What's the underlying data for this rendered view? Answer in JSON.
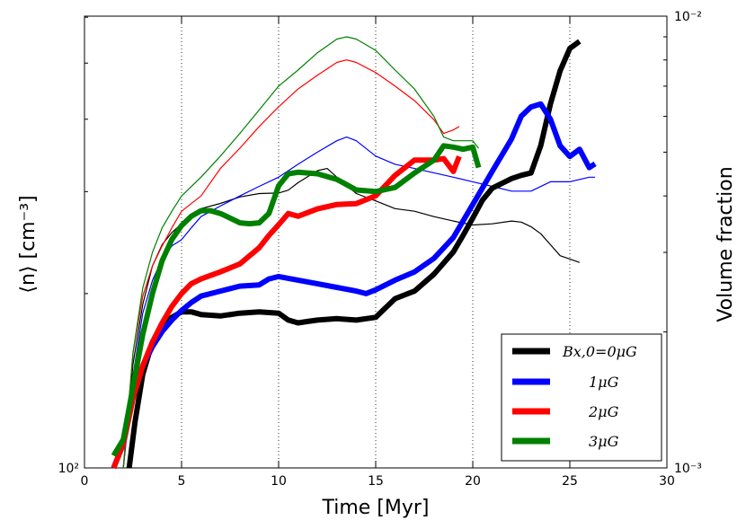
{
  "chart_data": {
    "type": "line",
    "title": "",
    "xlabel": "Time [Myr]",
    "ylabel_left": "⟨n⟩ [cm⁻³]",
    "ylabel_right": "Volume fraction",
    "xlim": [
      0,
      30
    ],
    "x_ticks": [
      "0",
      "5",
      "10",
      "15",
      "20",
      "25",
      "30"
    ],
    "y_left_scale": "log",
    "y_left_ticks": [
      "10²"
    ],
    "y_right_scale": "log",
    "y_right_lim": [
      0.001,
      0.01
    ],
    "y_right_ticks": [
      "10⁻²",
      "10⁻³"
    ],
    "grid": "vertical dotted lines at x = 5, 10, 15, 20, 25",
    "legend_placement": "lower right",
    "series": [
      {
        "name": "B_x,0 = 0 μG",
        "legend_label": "Bx,0=0μG",
        "color": "#000000",
        "axis": "left",
        "x": [
          2.3,
          2.6,
          3.0,
          3.5,
          4.0,
          4.5,
          5.0,
          5.5,
          6.0,
          7.0,
          8.0,
          9.0,
          10.0,
          10.5,
          11.0,
          11.5,
          12.0,
          13.0,
          14.0,
          15.0,
          16.0,
          17.0,
          18.0,
          19.0,
          19.5,
          20.0,
          20.5,
          21.0,
          22.0,
          22.5,
          23.0,
          23.5,
          24.0,
          24.5,
          25.0,
          25.5
        ],
        "y": [
          100,
          120,
          145,
          165,
          176,
          182,
          186,
          186,
          184,
          183,
          185,
          186,
          185,
          180,
          178,
          179,
          180,
          181,
          180,
          182,
          196,
          202,
          216,
          236,
          252,
          270,
          290,
          304,
          316,
          320,
          323,
          360,
          425,
          485,
          530,
          545
        ]
      },
      {
        "name": "1 μG",
        "legend_label": "1μG",
        "color": "#0000ff",
        "axis": "left",
        "x": [
          1.5,
          2.0,
          2.5,
          3.0,
          3.5,
          4.0,
          4.5,
          5.0,
          5.5,
          6.0,
          7.0,
          8.0,
          9.0,
          9.5,
          10.0,
          11.0,
          12.0,
          13.0,
          14.0,
          14.5,
          15.0,
          16.0,
          17.0,
          18.0,
          19.0,
          20.0,
          21.0,
          22.0,
          22.5,
          23.0,
          23.5,
          24.0,
          24.5,
          25.0,
          25.5,
          26.0,
          26.3
        ],
        "y": [
          100,
          110,
          132,
          150,
          162,
          172,
          180,
          187,
          193,
          198,
          202,
          206,
          207,
          212,
          214,
          211,
          208,
          205,
          202,
          200,
          203,
          211,
          218,
          230,
          250,
          285,
          325,
          370,
          405,
          420,
          425,
          400,
          360,
          345,
          355,
          330,
          335
        ]
      },
      {
        "name": "2 μG",
        "legend_label": "2μG",
        "color": "#ff0000",
        "axis": "left",
        "x": [
          1.5,
          2.0,
          2.5,
          3.0,
          3.5,
          4.0,
          4.5,
          5.0,
          5.5,
          6.0,
          7.0,
          8.0,
          9.0,
          9.5,
          10.0,
          10.5,
          11.0,
          12.0,
          13.0,
          14.0,
          15.0,
          16.0,
          17.0,
          18.0,
          18.5,
          19.0,
          19.3
        ],
        "y": [
          100,
          110,
          132,
          150,
          165,
          178,
          190,
          200,
          208,
          212,
          218,
          225,
          240,
          252,
          263,
          275,
          272,
          280,
          285,
          286,
          295,
          320,
          340,
          340,
          342,
          325,
          345
        ]
      },
      {
        "name": "3 μG",
        "legend_label": "3μG",
        "color": "#008000",
        "axis": "left",
        "x": [
          1.5,
          2.0,
          2.5,
          3.0,
          3.5,
          4.0,
          4.5,
          5.0,
          5.5,
          6.0,
          6.5,
          7.0,
          7.5,
          8.0,
          8.5,
          9.0,
          9.5,
          10.0,
          10.5,
          11.0,
          12.0,
          13.0,
          14.0,
          15.0,
          16.0,
          17.0,
          18.0,
          18.5,
          19.0,
          19.5,
          20.0,
          20.3
        ],
        "y": [
          105,
          112,
          138,
          170,
          200,
          228,
          248,
          262,
          272,
          278,
          278,
          275,
          270,
          265,
          264,
          265,
          275,
          307,
          322,
          324,
          322,
          315,
          302,
          300,
          305,
          323,
          340,
          360,
          358,
          355,
          358,
          330
        ]
      },
      {
        "name": "0 μG (volume fraction)",
        "color": "#000000",
        "axis": "right",
        "x": [
          2.0,
          2.5,
          3.0,
          3.5,
          4.0,
          4.5,
          5.0,
          5.5,
          6.0,
          7.0,
          8.0,
          9.0,
          10.0,
          10.5,
          11.0,
          12.0,
          12.5,
          13.0,
          14.0,
          15.0,
          16.0,
          17.0,
          18.0,
          19.0,
          20.0,
          21.0,
          22.0,
          22.5,
          23.0,
          23.5,
          24.0,
          24.5,
          25.0,
          25.5
        ],
        "y": [
          0.001,
          0.0017,
          0.0023,
          0.0028,
          0.00312,
          0.00332,
          0.00347,
          0.0036,
          0.00375,
          0.00385,
          0.00398,
          0.00405,
          0.00406,
          0.00412,
          0.00428,
          0.00455,
          0.0046,
          0.0044,
          0.00405,
          0.0039,
          0.00375,
          0.0037,
          0.0036,
          0.00352,
          0.00345,
          0.00347,
          0.00352,
          0.0035,
          0.00342,
          0.0033,
          0.00312,
          0.00295,
          0.0029,
          0.00285
        ]
      },
      {
        "name": "1 μG (volume fraction)",
        "color": "#0000ff",
        "axis": "right",
        "x": [
          2.0,
          2.5,
          3.0,
          3.5,
          4.0,
          4.5,
          5.0,
          5.5,
          6.0,
          7.0,
          8.0,
          9.0,
          10.0,
          11.0,
          12.0,
          13.0,
          13.5,
          14.0,
          15.0,
          16.0,
          17.0,
          18.0,
          19.0,
          20.0,
          21.0,
          22.0,
          23.0,
          24.0,
          25.0,
          26.0,
          26.3
        ],
        "y": [
          0.001,
          0.0016,
          0.0022,
          0.0026,
          0.0029,
          0.0031,
          0.0032,
          0.0034,
          0.0036,
          0.0038,
          0.004,
          0.0042,
          0.0044,
          0.0047,
          0.005,
          0.0053,
          0.0054,
          0.0053,
          0.0049,
          0.0047,
          0.0046,
          0.0045,
          0.0044,
          0.0043,
          0.0042,
          0.0041,
          0.0041,
          0.0043,
          0.0043,
          0.0044,
          0.0044
        ]
      },
      {
        "name": "2 μG (volume fraction)",
        "color": "#ff0000",
        "axis": "right",
        "x": [
          2.0,
          2.5,
          3.0,
          3.5,
          4.0,
          4.5,
          5.0,
          6.0,
          7.0,
          8.0,
          9.0,
          10.0,
          11.0,
          12.0,
          13.0,
          13.5,
          14.0,
          15.0,
          16.0,
          17.0,
          18.0,
          18.5,
          19.0,
          19.3
        ],
        "y": [
          0.001,
          0.0018,
          0.0024,
          0.0028,
          0.0031,
          0.0034,
          0.0037,
          0.004,
          0.0046,
          0.0051,
          0.0057,
          0.0063,
          0.0069,
          0.0074,
          0.0079,
          0.008,
          0.0079,
          0.0075,
          0.007,
          0.0065,
          0.0059,
          0.0055,
          0.0056,
          0.0057
        ]
      },
      {
        "name": "3 μG (volume fraction)",
        "color": "#008000",
        "axis": "right",
        "x": [
          2.0,
          2.5,
          3.0,
          3.5,
          4.0,
          4.5,
          5.0,
          6.0,
          7.0,
          8.0,
          9.0,
          10.0,
          11.0,
          12.0,
          13.0,
          13.5,
          14.0,
          15.0,
          16.0,
          17.0,
          18.0,
          18.5,
          19.0,
          20.0,
          20.3
        ],
        "y": [
          0.001,
          0.0018,
          0.0025,
          0.003,
          0.0034,
          0.0037,
          0.004,
          0.0044,
          0.0049,
          0.0055,
          0.0062,
          0.007,
          0.0076,
          0.0083,
          0.0089,
          0.009,
          0.0089,
          0.0084,
          0.0076,
          0.0069,
          0.006,
          0.0054,
          0.0053,
          0.0053,
          0.0051
        ]
      }
    ]
  }
}
